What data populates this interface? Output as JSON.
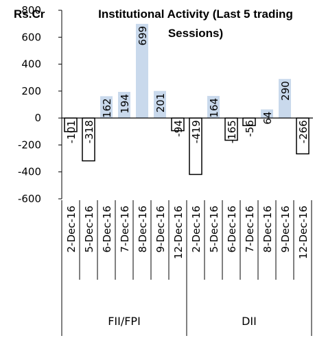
{
  "chart_data": {
    "type": "bar",
    "title": "Institutional Activity (Last 5 trading Sessions)",
    "title_lines": [
      "Institutional Activity (Last 5 trading",
      "Sessions)"
    ],
    "ylabel": "Rs.Cr",
    "ylim": [
      -600,
      800
    ],
    "yticks": [
      -600,
      -400,
      -200,
      0,
      200,
      400,
      600,
      800
    ],
    "categories": [
      "2-Dec-16",
      "5-Dec-16",
      "6-Dec-16",
      "7-Dec-16",
      "8-Dec-16",
      "9-Dec-16",
      "12-Dec-16",
      "2-Dec-16",
      "5-Dec-16",
      "6-Dec-16",
      "7-Dec-16",
      "8-Dec-16",
      "9-Dec-16",
      "12-Dec-16"
    ],
    "groups": [
      {
        "name": "FII/FPI",
        "start": 0,
        "count": 7
      },
      {
        "name": "DII",
        "start": 7,
        "count": 7
      }
    ],
    "values": [
      -101,
      -318,
      162,
      194,
      699,
      201,
      -94,
      -419,
      164,
      -165,
      -56,
      64,
      290,
      -266
    ],
    "colors": {
      "positive_fill": "#c9d9ec",
      "negative_fill": "#ffffff",
      "negative_stroke": "#000000",
      "axis": "#000000"
    },
    "grid": false
  }
}
